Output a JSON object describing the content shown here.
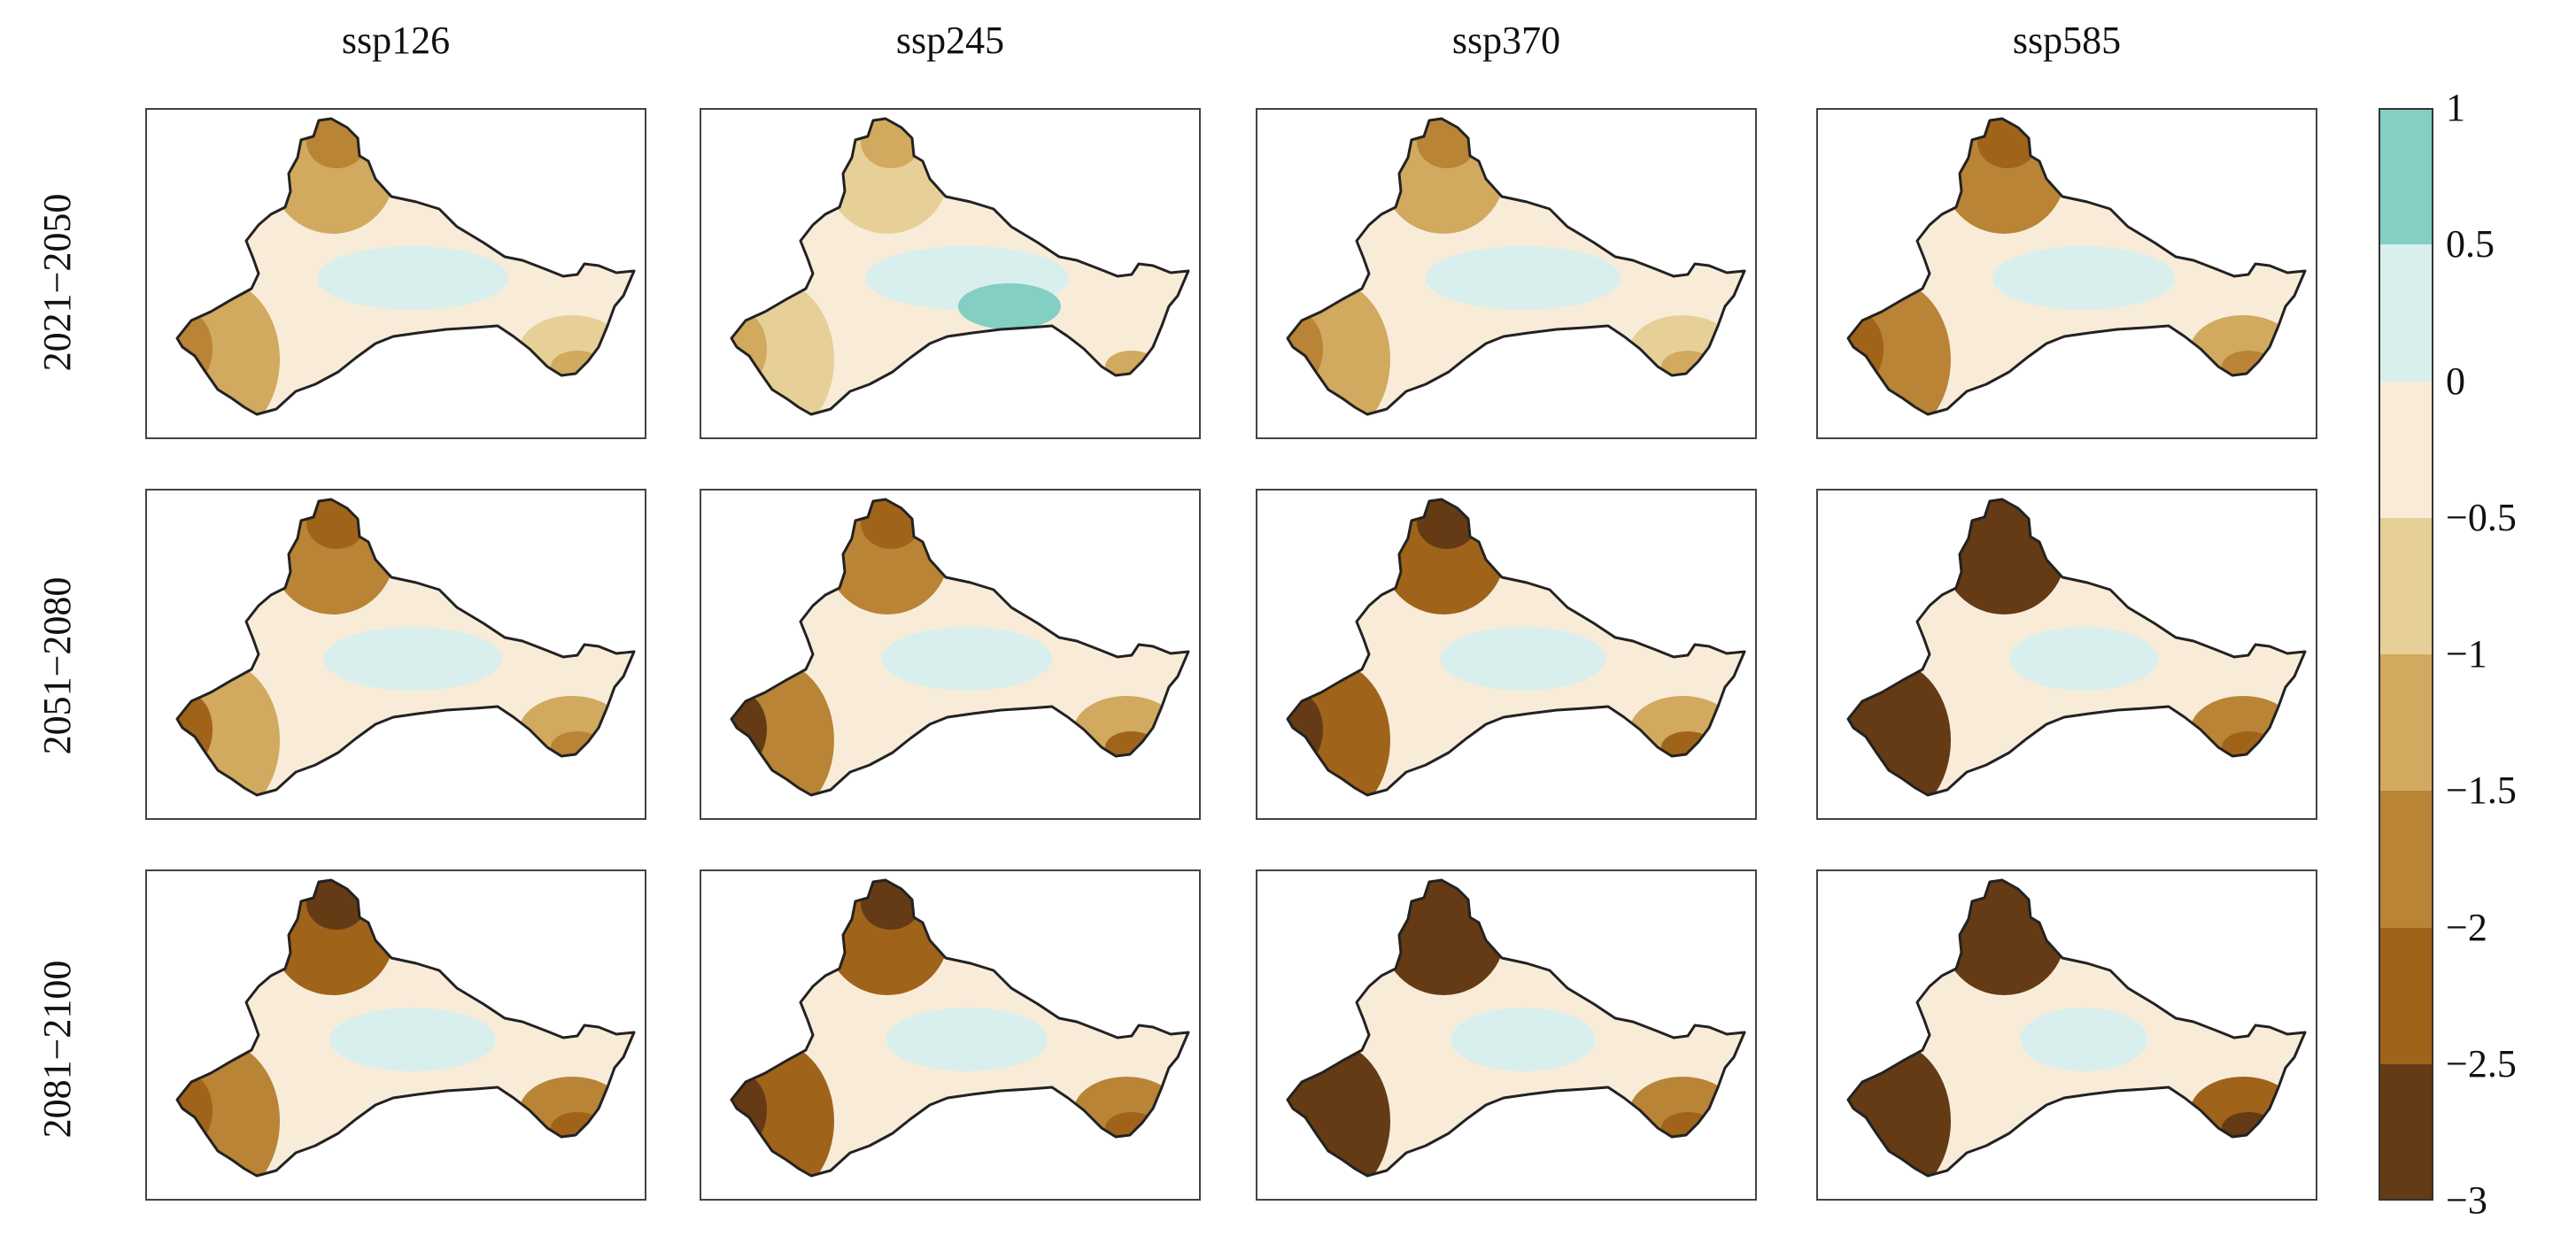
{
  "figure": {
    "columns": [
      "ssp126",
      "ssp245",
      "ssp370",
      "ssp585"
    ],
    "rows": [
      "2021−2050",
      "2051−2080",
      "2081−2100"
    ],
    "panels": [
      [
        {
          "level": 0.25,
          "east": 0.2,
          "west": 0.35
        },
        {
          "level": 0.4,
          "east": 0.4,
          "west": 0.45
        },
        {
          "level": 0.55,
          "east": 0.5,
          "west": 0.55
        }
      ],
      [
        {
          "level": 0.1,
          "east": 0.05,
          "west": 0.15
        },
        {
          "level": 0.5,
          "east": 0.45,
          "west": 0.65
        },
        {
          "level": 0.6,
          "east": 0.5,
          "west": 0.8
        }
      ],
      [
        {
          "level": 0.2,
          "east": 0.1,
          "west": 0.4
        },
        {
          "level": 0.55,
          "east": 0.45,
          "west": 0.75
        },
        {
          "level": 0.8,
          "east": 0.55,
          "west": 0.95
        }
      ],
      [
        {
          "level": 0.35,
          "east": 0.3,
          "west": 0.55
        },
        {
          "level": 0.75,
          "east": 0.6,
          "west": 0.9
        },
        {
          "level": 1.0,
          "east": 0.7,
          "west": 1.0
        }
      ]
    ]
  },
  "colorbar": {
    "ticks": [
      "1",
      "0.5",
      "0",
      "−0.5",
      "−1",
      "−1.5",
      "−2",
      "−2.5",
      "−3"
    ],
    "colors": [
      "#83cfc3",
      "#d9efed",
      "#f8ecd9",
      "#e6d098",
      "#d1a95f",
      "#b98436",
      "#a0631a",
      "#643b14"
    ]
  },
  "colors": {
    "land_base": "#f8ecd9",
    "pos_strong": "#83cfc3",
    "pos_light": "#d9efed",
    "neg_1": "#e6d098",
    "neg_2": "#d1a95f",
    "neg_3": "#b98436",
    "neg_4": "#a0631a",
    "neg_5": "#643b14",
    "outline": "#222222",
    "panel_border": "#444444"
  }
}
